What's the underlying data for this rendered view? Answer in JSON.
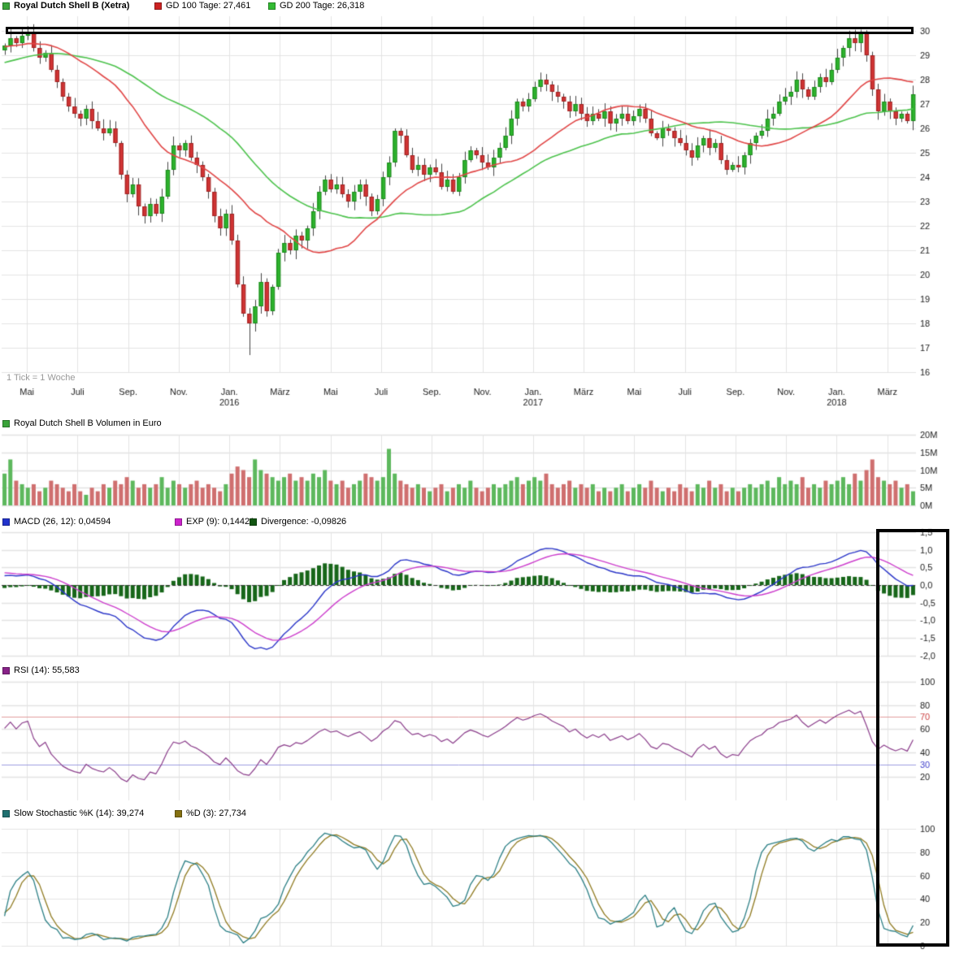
{
  "chart_data": {
    "type": "candlestick",
    "title": "Royal Dutch Shell B (Xetra)",
    "legends": {
      "price_title": "Royal Dutch Shell B (Xetra)",
      "gd100": "GD 100 Tage: 27,461",
      "gd200": "GD 200 Tage: 26,318",
      "volume": "Royal Dutch Shell B Volumen in Euro",
      "macd": "MACD (26, 12): 0,04594",
      "exp": "EXP (9): 0,14421",
      "divergence": "Divergence: -0,09826",
      "rsi": "RSI (14): 55,583",
      "stoch_k": "Slow Stochastic %K (14): 39,274",
      "stoch_d": "%D (3): 27,734"
    },
    "x_axis": {
      "note": "1 Tick = 1 Woche",
      "weeks_per_month": 4.345,
      "tick_labels": [
        {
          "label": "Mai",
          "month": 1
        },
        {
          "label": "Juli",
          "month": 3
        },
        {
          "label": "Sep.",
          "month": 5
        },
        {
          "label": "Nov.",
          "month": 7
        },
        {
          "label": "Jan.",
          "month": 9
        },
        {
          "label": "März",
          "month": 11
        },
        {
          "label": "Mai",
          "month": 13
        },
        {
          "label": "Juli",
          "month": 15
        },
        {
          "label": "Sep.",
          "month": 17
        },
        {
          "label": "Nov.",
          "month": 19
        },
        {
          "label": "Jan.",
          "month": 21
        },
        {
          "label": "März",
          "month": 23
        },
        {
          "label": "Mai",
          "month": 25
        },
        {
          "label": "Juli",
          "month": 27
        },
        {
          "label": "Sep.",
          "month": 29
        },
        {
          "label": "Nov.",
          "month": 31
        },
        {
          "label": "Jan.",
          "month": 33
        },
        {
          "label": "März",
          "month": 35
        }
      ],
      "year_labels": [
        {
          "label": "2016",
          "month": 9
        },
        {
          "label": "2017",
          "month": 21
        },
        {
          "label": "2018",
          "month": 33
        }
      ]
    },
    "price_panel": {
      "ylim": [
        16,
        30
      ],
      "tick_step": 1,
      "gd100_period_weeks": 20,
      "gd200_period_weeks": 40,
      "first_open": 29.2,
      "closes": [
        29.4,
        29.7,
        29.5,
        29.8,
        29.9,
        29.3,
        28.9,
        29.1,
        28.4,
        27.9,
        27.3,
        26.9,
        26.6,
        26.4,
        26.8,
        26.3,
        26.0,
        25.8,
        26.0,
        25.4,
        24.1,
        23.3,
        23.7,
        22.8,
        22.4,
        22.9,
        22.5,
        23.2,
        24.3,
        25.3,
        25.1,
        25.4,
        24.8,
        24.5,
        24.0,
        23.4,
        22.4,
        21.9,
        22.5,
        21.4,
        19.6,
        18.4,
        18.0,
        18.7,
        19.7,
        18.5,
        19.5,
        20.9,
        21.3,
        21.0,
        21.6,
        21.4,
        21.9,
        22.6,
        23.4,
        23.9,
        23.5,
        23.7,
        23.3,
        23.0,
        23.4,
        23.7,
        23.2,
        22.6,
        23.1,
        24.0,
        24.6,
        25.9,
        25.7,
        24.9,
        24.3,
        24.5,
        24.1,
        24.4,
        24.2,
        23.6,
        23.9,
        23.4,
        24.0,
        24.7,
        25.1,
        24.9,
        24.6,
        24.4,
        24.8,
        25.2,
        25.7,
        26.4,
        27.1,
        26.9,
        27.2,
        27.7,
        28.0,
        27.8,
        27.5,
        27.3,
        27.1,
        26.7,
        27.0,
        26.6,
        26.3,
        26.6,
        26.4,
        26.7,
        26.2,
        26.4,
        26.6,
        26.3,
        26.5,
        26.8,
        26.4,
        25.8,
        25.6,
        26.0,
        25.9,
        25.6,
        25.4,
        25.1,
        24.8,
        25.3,
        25.6,
        25.2,
        25.4,
        24.7,
        24.3,
        24.5,
        24.4,
        24.9,
        25.4,
        25.7,
        25.9,
        26.4,
        26.6,
        27.1,
        27.3,
        27.5,
        28.0,
        27.6,
        27.3,
        27.7,
        28.1,
        27.9,
        28.4,
        28.9,
        29.3,
        29.7,
        29.5,
        29.9,
        29.0,
        27.6,
        26.7,
        27.1,
        26.7,
        26.4,
        26.6,
        26.3,
        27.4
      ],
      "prehistory_closes": [
        27.0,
        27.1,
        27.2,
        27.3,
        27.5,
        27.4,
        27.6,
        27.8,
        27.7,
        27.9,
        28.0,
        28.2,
        28.1,
        28.3,
        28.4,
        28.6,
        28.5,
        28.7,
        28.8,
        28.9,
        29.0,
        28.9,
        29.1,
        29.2,
        29.0,
        29.3,
        29.4,
        29.2,
        29.5,
        29.4,
        29.6,
        29.5,
        29.7,
        29.6,
        29.4,
        29.5,
        29.3,
        29.4,
        29.2,
        29.3
      ],
      "low_overrides": {
        "42": 16.7
      }
    },
    "volume_panel": {
      "ylim_millions": [
        0,
        20
      ],
      "ticks": [
        {
          "v": 20,
          "label": "20M"
        },
        {
          "v": 15,
          "label": "15M"
        },
        {
          "v": 10,
          "label": "10M"
        },
        {
          "v": 5,
          "label": "5M"
        },
        {
          "v": 0,
          "label": "0M"
        }
      ],
      "volumes_millions": [
        9,
        13,
        7,
        6,
        5,
        6,
        4,
        5,
        7,
        6,
        5,
        4,
        6,
        4,
        3,
        5,
        4,
        6,
        5,
        7,
        6,
        8,
        7,
        5,
        6,
        5,
        6,
        8,
        5,
        7,
        6,
        5,
        6,
        7,
        5,
        6,
        5,
        4,
        6,
        9,
        11,
        10,
        8,
        13,
        10,
        9,
        8,
        7,
        8,
        9,
        7,
        8,
        7,
        9,
        8,
        10,
        7,
        6,
        7,
        5,
        6,
        7,
        9,
        8,
        7,
        8,
        16,
        9,
        7,
        6,
        5,
        6,
        5,
        4,
        5,
        6,
        4,
        5,
        6,
        5,
        7,
        5,
        4,
        5,
        6,
        5,
        6,
        7,
        8,
        6,
        7,
        8,
        7,
        9,
        6,
        5,
        6,
        7,
        5,
        6,
        5,
        6,
        4,
        5,
        4,
        5,
        6,
        4,
        5,
        6,
        5,
        7,
        5,
        4,
        5,
        4,
        6,
        5,
        4,
        6,
        5,
        7,
        5,
        6,
        4,
        5,
        4,
        5,
        6,
        5,
        6,
        7,
        5,
        8,
        6,
        7,
        6,
        8,
        5,
        6,
        5,
        7,
        6,
        7,
        8,
        6,
        9,
        7,
        10,
        13,
        8,
        7,
        6,
        7,
        5,
        6,
        4
      ]
    },
    "macd_panel": {
      "fast": 12,
      "slow": 26,
      "signal": 9,
      "ticks": [
        {
          "v": 1.5,
          "label": "1,5"
        },
        {
          "v": 1.0,
          "label": "1,0"
        },
        {
          "v": 0.5,
          "label": "0,5"
        },
        {
          "v": 0.0,
          "label": "0,0"
        },
        {
          "v": -0.5,
          "label": "-0,5"
        },
        {
          "v": -1.0,
          "label": "-1,0"
        },
        {
          "v": -1.5,
          "label": "-1,5"
        },
        {
          "v": -2.0,
          "label": "-2,0"
        }
      ]
    },
    "rsi_panel": {
      "period": 14,
      "ticks": [
        100,
        80,
        60,
        40,
        20
      ],
      "levels": [
        {
          "v": 70,
          "label": "70",
          "line_color": "#e09c9c",
          "label_color": "#cc4444"
        },
        {
          "v": 30,
          "label": "30",
          "line_color": "#9c9ce0",
          "label_color": "#4444cc"
        }
      ]
    },
    "stoch_panel": {
      "k_period": 14,
      "smooth": 3,
      "d_period": 3,
      "ticks": [
        100,
        80,
        60,
        40,
        20,
        0
      ]
    },
    "colors": {
      "up": "#2db52d",
      "down": "#d23434",
      "up_border": "#1d871d",
      "down_border": "#9e2323",
      "wick": "#444444",
      "gd100_line": "#e04545",
      "gd200_line": "#4cc24c",
      "legend_instrument": "#3aa33a",
      "gd100_swatch": "#cc2222",
      "gd200_swatch": "#33bb33",
      "volume_up": "#5db85d",
      "volume_down": "#cf6f6f",
      "volume_swatch": "#3aa33a",
      "macd_line": "#2a35c8",
      "macd_swatch": "#2233cc",
      "exp_line": "#cc3dcc",
      "exp_swatch": "#cc22cc",
      "divergence": "#176619",
      "divergence_swatch": "#115511",
      "rsi_line": "#8a3c8a",
      "rsi_swatch": "#882288",
      "stoch_k": "#2b7f85",
      "stoch_k_swatch": "#1f7070",
      "stoch_d": "#8f7a20",
      "stoch_d_swatch": "#857010",
      "grid": "#e3e3e3",
      "axis_text": "#1a1a1a",
      "annotation": "#000000"
    }
  }
}
